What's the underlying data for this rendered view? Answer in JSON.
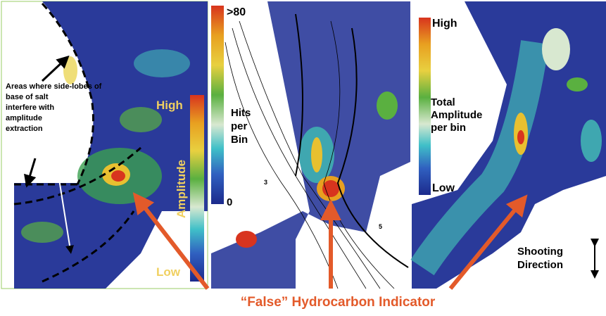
{
  "panels": [
    {
      "annotation": [
        "Areas where side-lobes of",
        "base of salt",
        "interfere with",
        "amplitude",
        "extraction"
      ],
      "scale_top": "High",
      "scale_title": "Amplitude",
      "scale_bottom": "Low"
    },
    {
      "scale_top": ">80",
      "scale_title": [
        "Hits",
        "per",
        "Bin"
      ],
      "scale_bottom": "0",
      "contour_labels": [
        "3",
        "5"
      ]
    },
    {
      "scale_top": "High",
      "scale_title": [
        "Total",
        "Amplitude",
        "per bin"
      ],
      "scale_bottom": "Low",
      "note": [
        "Shooting",
        "Direction"
      ]
    }
  ],
  "caption": "“False” Hydrocarbon Indicator"
}
